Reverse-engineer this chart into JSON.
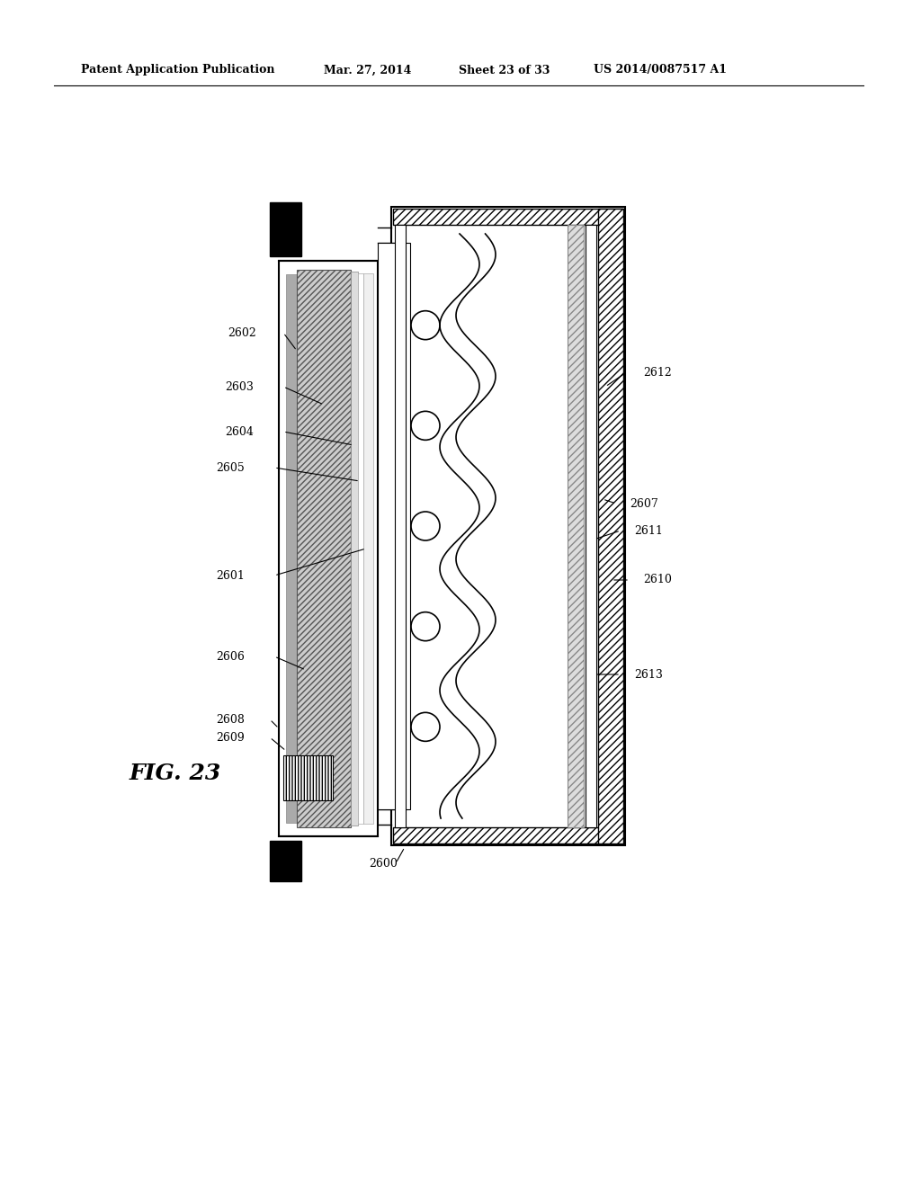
{
  "bg_color": "#ffffff",
  "header_text": "Patent Application Publication",
  "header_date": "Mar. 27, 2014",
  "header_sheet": "Sheet 23 of 33",
  "header_patent": "US 2014/0087517 A1",
  "fig_label": "FIG. 23"
}
